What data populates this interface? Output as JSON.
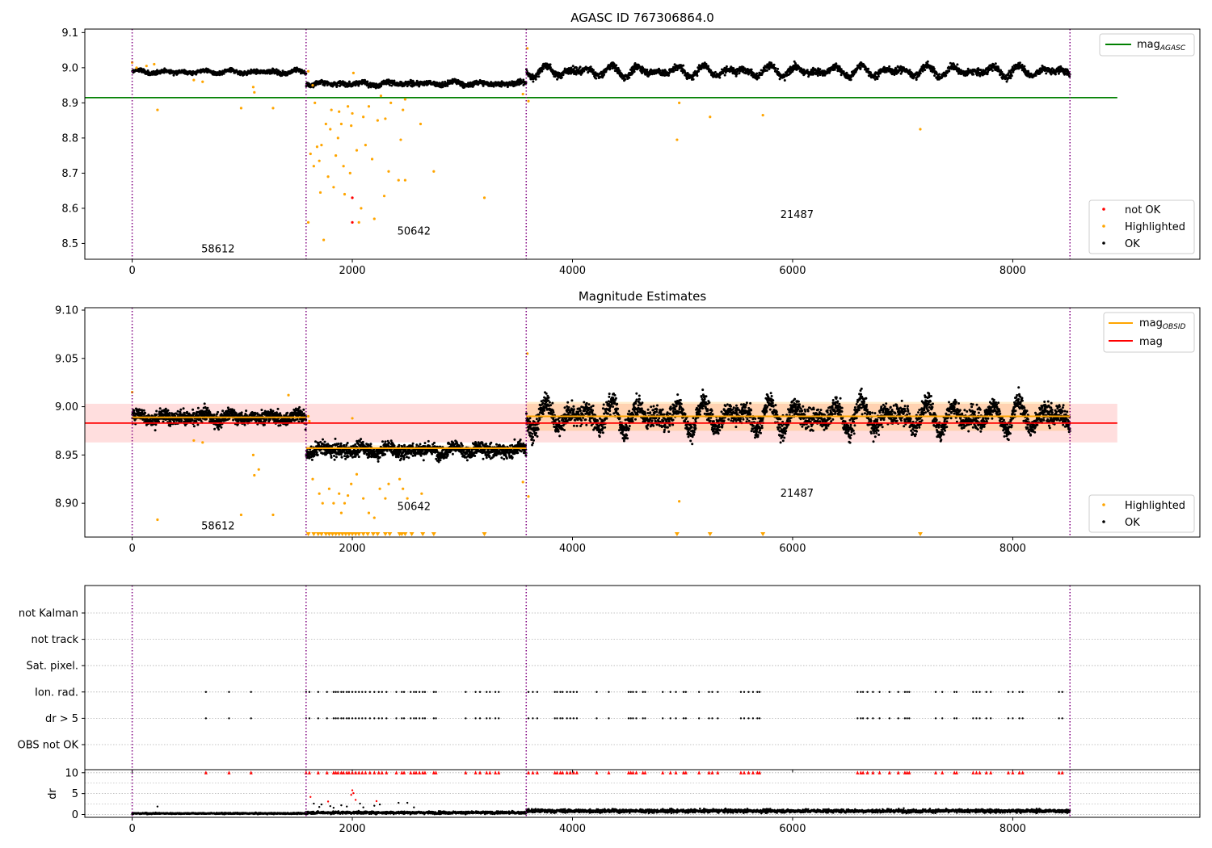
{
  "chart_data": [
    {
      "id": "agasc",
      "type": "scatter",
      "title": "AGASC ID 767306864.0",
      "xlabel": "",
      "ylabel": "",
      "xlim": [
        -430,
        9700
      ],
      "ylim": [
        8.455,
        9.11
      ],
      "xticks": [
        "0",
        "2000",
        "4000",
        "6000",
        "8000"
      ],
      "yticks": [
        "8.5",
        "8.6",
        "8.7",
        "8.8",
        "8.9",
        "9.0",
        "9.1"
      ],
      "legend_lines": [
        {
          "label": "mag",
          "sub": "AGASC",
          "color": "#008000"
        }
      ],
      "legend_points": [
        {
          "label": "not OK",
          "color": "#ff0000"
        },
        {
          "label": "Highlighted",
          "color": "#ffa500"
        },
        {
          "label": "OK",
          "color": "#000000"
        }
      ],
      "hlines": [
        {
          "name": "mag_AGASC",
          "y": 8.915,
          "x0": -430,
          "x1": 8950,
          "color": "#008000"
        }
      ],
      "obsid_boundaries": [
        0,
        1580,
        3580,
        8520
      ],
      "obsid_labels": [
        {
          "text": "58612",
          "x": 780,
          "y": 8.475
        },
        {
          "text": "50642",
          "x": 2560,
          "y": 8.525
        },
        {
          "text": "21487",
          "x": 6040,
          "y": 8.572
        }
      ],
      "ok_segments": [
        {
          "x0": 0,
          "x1": 1580,
          "mean": 8.988,
          "amp": 0.006,
          "noise": 0.005
        },
        {
          "x0": 1580,
          "x1": 3580,
          "mean": 8.955,
          "amp": 0.006,
          "noise": 0.006
        },
        {
          "x0": 3580,
          "x1": 8520,
          "mean": 8.99,
          "amp": 0.018,
          "noise": 0.008
        }
      ],
      "highlighted": [
        [
          0,
          9.015
        ],
        [
          40,
          9.0
        ],
        [
          130,
          9.005
        ],
        [
          200,
          9.01
        ],
        [
          230,
          8.88
        ],
        [
          560,
          8.965
        ],
        [
          640,
          8.96
        ],
        [
          990,
          8.885
        ],
        [
          1100,
          8.945
        ],
        [
          1110,
          8.93
        ],
        [
          1280,
          8.885
        ],
        [
          1600,
          8.99
        ],
        [
          1640,
          8.95
        ],
        [
          1660,
          8.9
        ],
        [
          1620,
          8.755
        ],
        [
          1600,
          8.56
        ],
        [
          1650,
          8.72
        ],
        [
          1680,
          8.775
        ],
        [
          1700,
          8.735
        ],
        [
          1710,
          8.645
        ],
        [
          1720,
          8.78
        ],
        [
          1740,
          8.51
        ],
        [
          1760,
          8.84
        ],
        [
          1780,
          8.69
        ],
        [
          1800,
          8.825
        ],
        [
          1810,
          8.88
        ],
        [
          1830,
          8.66
        ],
        [
          1850,
          8.75
        ],
        [
          1870,
          8.8
        ],
        [
          1880,
          8.875
        ],
        [
          1900,
          8.84
        ],
        [
          1920,
          8.72
        ],
        [
          1930,
          8.64
        ],
        [
          1960,
          8.89
        ],
        [
          1980,
          8.7
        ],
        [
          1990,
          8.835
        ],
        [
          2000,
          8.87
        ],
        [
          2010,
          8.985
        ],
        [
          2040,
          8.765
        ],
        [
          2060,
          8.56
        ],
        [
          2080,
          8.6
        ],
        [
          2100,
          8.86
        ],
        [
          2120,
          8.78
        ],
        [
          2150,
          8.89
        ],
        [
          2180,
          8.74
        ],
        [
          2200,
          8.57
        ],
        [
          2230,
          8.85
        ],
        [
          2260,
          8.92
        ],
        [
          2290,
          8.635
        ],
        [
          2300,
          8.855
        ],
        [
          2330,
          8.705
        ],
        [
          2350,
          8.9
        ],
        [
          2420,
          8.68
        ],
        [
          2440,
          8.795
        ],
        [
          2460,
          8.88
        ],
        [
          2480,
          8.91
        ],
        [
          2480,
          8.68
        ],
        [
          2620,
          8.84
        ],
        [
          2740,
          8.705
        ],
        [
          3200,
          8.63
        ],
        [
          3550,
          8.925
        ],
        [
          3600,
          8.905
        ],
        [
          3590,
          9.055
        ],
        [
          4950,
          8.795
        ],
        [
          4970,
          8.9
        ],
        [
          5250,
          8.86
        ],
        [
          5730,
          8.865
        ],
        [
          7160,
          8.825
        ]
      ],
      "not_ok": [
        [
          2000,
          8.63
        ],
        [
          2000,
          8.56
        ]
      ]
    },
    {
      "id": "estimates",
      "type": "scatter",
      "title": "Magnitude Estimates",
      "xlabel": "",
      "ylabel": "",
      "xlim": [
        -430,
        9700
      ],
      "ylim": [
        8.865,
        9.1025
      ],
      "xticks": [
        "0",
        "2000",
        "4000",
        "6000",
        "8000"
      ],
      "yticks": [
        "8.90",
        "8.95",
        "9.00",
        "9.05",
        "9.10"
      ],
      "legend_lines": [
        {
          "label": "mag",
          "sub": "OBSID",
          "color": "#ffa500"
        },
        {
          "label": "mag",
          "sub": "",
          "color": "#ff0000"
        }
      ],
      "legend_points": [
        {
          "label": "Highlighted",
          "color": "#ffa500"
        },
        {
          "label": "OK",
          "color": "#000000"
        }
      ],
      "mag": {
        "value": 8.983,
        "band": [
          8.963,
          9.003
        ],
        "x0": -430,
        "x1": 8950,
        "color": "#ff0000"
      },
      "mag_obsid": [
        {
          "x0": 0,
          "x1": 1580,
          "value": 8.989,
          "band": [
            8.985,
            8.992
          ]
        },
        {
          "x0": 1580,
          "x1": 3580,
          "value": 8.957,
          "band": [
            8.954,
            8.96
          ]
        },
        {
          "x0": 3580,
          "x1": 8520,
          "value": 8.99,
          "band": [
            8.975,
            9.005
          ]
        }
      ],
      "obsid_boundaries": [
        0,
        1580,
        3580,
        8520
      ],
      "obsid_labels": [
        {
          "text": "58612",
          "x": 780,
          "y": 8.873
        },
        {
          "text": "50642",
          "x": 2560,
          "y": 8.893
        },
        {
          "text": "21487",
          "x": 6040,
          "y": 8.907
        }
      ],
      "ok_segments": [
        {
          "x0": 0,
          "x1": 1580,
          "mean": 8.989,
          "amp": 0.004,
          "noise": 0.006
        },
        {
          "x0": 1580,
          "x1": 3580,
          "mean": 8.955,
          "amp": 0.004,
          "noise": 0.006
        },
        {
          "x0": 3580,
          "x1": 8520,
          "mean": 8.99,
          "amp": 0.016,
          "noise": 0.009
        }
      ],
      "highlighted": [
        [
          0,
          9.015
        ],
        [
          230,
          8.883
        ],
        [
          560,
          8.965
        ],
        [
          640,
          8.963
        ],
        [
          990,
          8.888
        ],
        [
          1100,
          8.95
        ],
        [
          1110,
          8.929
        ],
        [
          1150,
          8.935
        ],
        [
          1280,
          8.888
        ],
        [
          1420,
          9.012
        ],
        [
          1600,
          8.99
        ],
        [
          1610,
          8.985
        ],
        [
          1640,
          8.925
        ],
        [
          1700,
          8.91
        ],
        [
          1730,
          8.9
        ],
        [
          1790,
          8.915
        ],
        [
          1830,
          8.9
        ],
        [
          1880,
          8.91
        ],
        [
          1900,
          8.89
        ],
        [
          1930,
          8.9
        ],
        [
          1960,
          8.908
        ],
        [
          1990,
          8.92
        ],
        [
          2000,
          8.988
        ],
        [
          2040,
          8.93
        ],
        [
          2100,
          8.905
        ],
        [
          2150,
          8.89
        ],
        [
          2200,
          8.885
        ],
        [
          2250,
          8.915
        ],
        [
          2300,
          8.905
        ],
        [
          2330,
          8.92
        ],
        [
          2430,
          8.925
        ],
        [
          2460,
          8.915
        ],
        [
          2500,
          8.905
        ],
        [
          2630,
          8.91
        ],
        [
          3550,
          8.922
        ],
        [
          3600,
          8.907
        ],
        [
          3590,
          9.055
        ],
        [
          4970,
          8.902
        ]
      ],
      "clipped_x": [
        1600,
        1650,
        1690,
        1720,
        1760,
        1790,
        1820,
        1850,
        1880,
        1910,
        1940,
        1970,
        2000,
        2030,
        2060,
        2100,
        2140,
        2190,
        2230,
        2300,
        2340,
        2430,
        2450,
        2480,
        2540,
        2640,
        2740,
        3200,
        4950,
        5250,
        5730,
        7160
      ]
    },
    {
      "id": "flags",
      "type": "scatter",
      "title": "",
      "xlim": [
        -430,
        9700
      ],
      "xticks": [
        "0",
        "2000",
        "4000",
        "6000",
        "8000"
      ],
      "flag_rows": [
        "not Kalman",
        "not track",
        "Sat. pixel.",
        "Ion. rad.",
        "dr > 5",
        "OBS not OK"
      ],
      "obsid_boundaries": [
        0,
        1580,
        3580,
        8520
      ],
      "flag_x": [
        670,
        880,
        1080,
        1580,
        1610,
        1690,
        1770,
        1830,
        1850,
        1870,
        1900,
        1920,
        1950,
        1970,
        2000,
        2030,
        2060,
        2090,
        2120,
        2160,
        2200,
        2240,
        2270,
        2310,
        2400,
        2450,
        2470,
        2530,
        2560,
        2580,
        2610,
        2640,
        2660,
        2740,
        2760,
        3030,
        3120,
        3160,
        3220,
        3250,
        3300,
        3330,
        3600,
        3640,
        3680,
        3840,
        3860,
        3890,
        3910,
        3950,
        3980,
        4010,
        4040,
        4220,
        4330,
        4510,
        4530,
        4550,
        4580,
        4640,
        4660,
        4820,
        4890,
        4940,
        5010,
        5030,
        5150,
        5240,
        5270,
        5320,
        5530,
        5560,
        5600,
        5640,
        5680,
        5700,
        6590,
        6620,
        6640,
        6680,
        6730,
        6790,
        6880,
        6960,
        7020,
        7040,
        7060,
        7300,
        7360,
        7470,
        7490,
        7640,
        7670,
        7700,
        7760,
        7800,
        7960,
        8000,
        8060,
        8090,
        8420,
        8450
      ]
    },
    {
      "id": "dr",
      "type": "scatter",
      "title": "",
      "xlabel": "",
      "ylabel": "dr",
      "xlim": [
        -430,
        9700
      ],
      "ylim": [
        -0.5,
        11
      ],
      "xticks": [
        "0",
        "2000",
        "4000",
        "6000",
        "8000"
      ],
      "yticks": [
        "0",
        "5",
        "10"
      ],
      "clip_value": 10,
      "obsid_boundaries": [
        0,
        1580,
        3580,
        8520
      ],
      "ok_segments": [
        {
          "x0": 0,
          "x1": 1580,
          "mean": 0.25,
          "noise": 0.12
        },
        {
          "x0": 1580,
          "x1": 3580,
          "mean": 0.45,
          "noise": 0.25
        },
        {
          "x0": 3580,
          "x1": 8520,
          "mean": 0.85,
          "noise": 0.35
        }
      ],
      "outliers": [
        [
          230,
          1.9
        ],
        [
          1620,
          4.2
        ],
        [
          1650,
          2.6
        ],
        [
          1700,
          1.8
        ],
        [
          1720,
          2.4
        ],
        [
          1780,
          3.1
        ],
        [
          1800,
          2.0
        ],
        [
          1830,
          1.6
        ],
        [
          1900,
          2.2
        ],
        [
          1950,
          1.9
        ],
        [
          1990,
          4.7
        ],
        [
          2000,
          5.8
        ],
        [
          2010,
          5.1
        ],
        [
          2030,
          3.5
        ],
        [
          2070,
          2.6
        ],
        [
          2100,
          1.7
        ],
        [
          2200,
          2.1
        ],
        [
          2220,
          3.2
        ],
        [
          2250,
          2.4
        ],
        [
          2420,
          2.8
        ],
        [
          2500,
          2.8
        ],
        [
          2560,
          1.7
        ],
        [
          4900,
          1.4
        ],
        [
          7010,
          1.5
        ]
      ]
    }
  ]
}
